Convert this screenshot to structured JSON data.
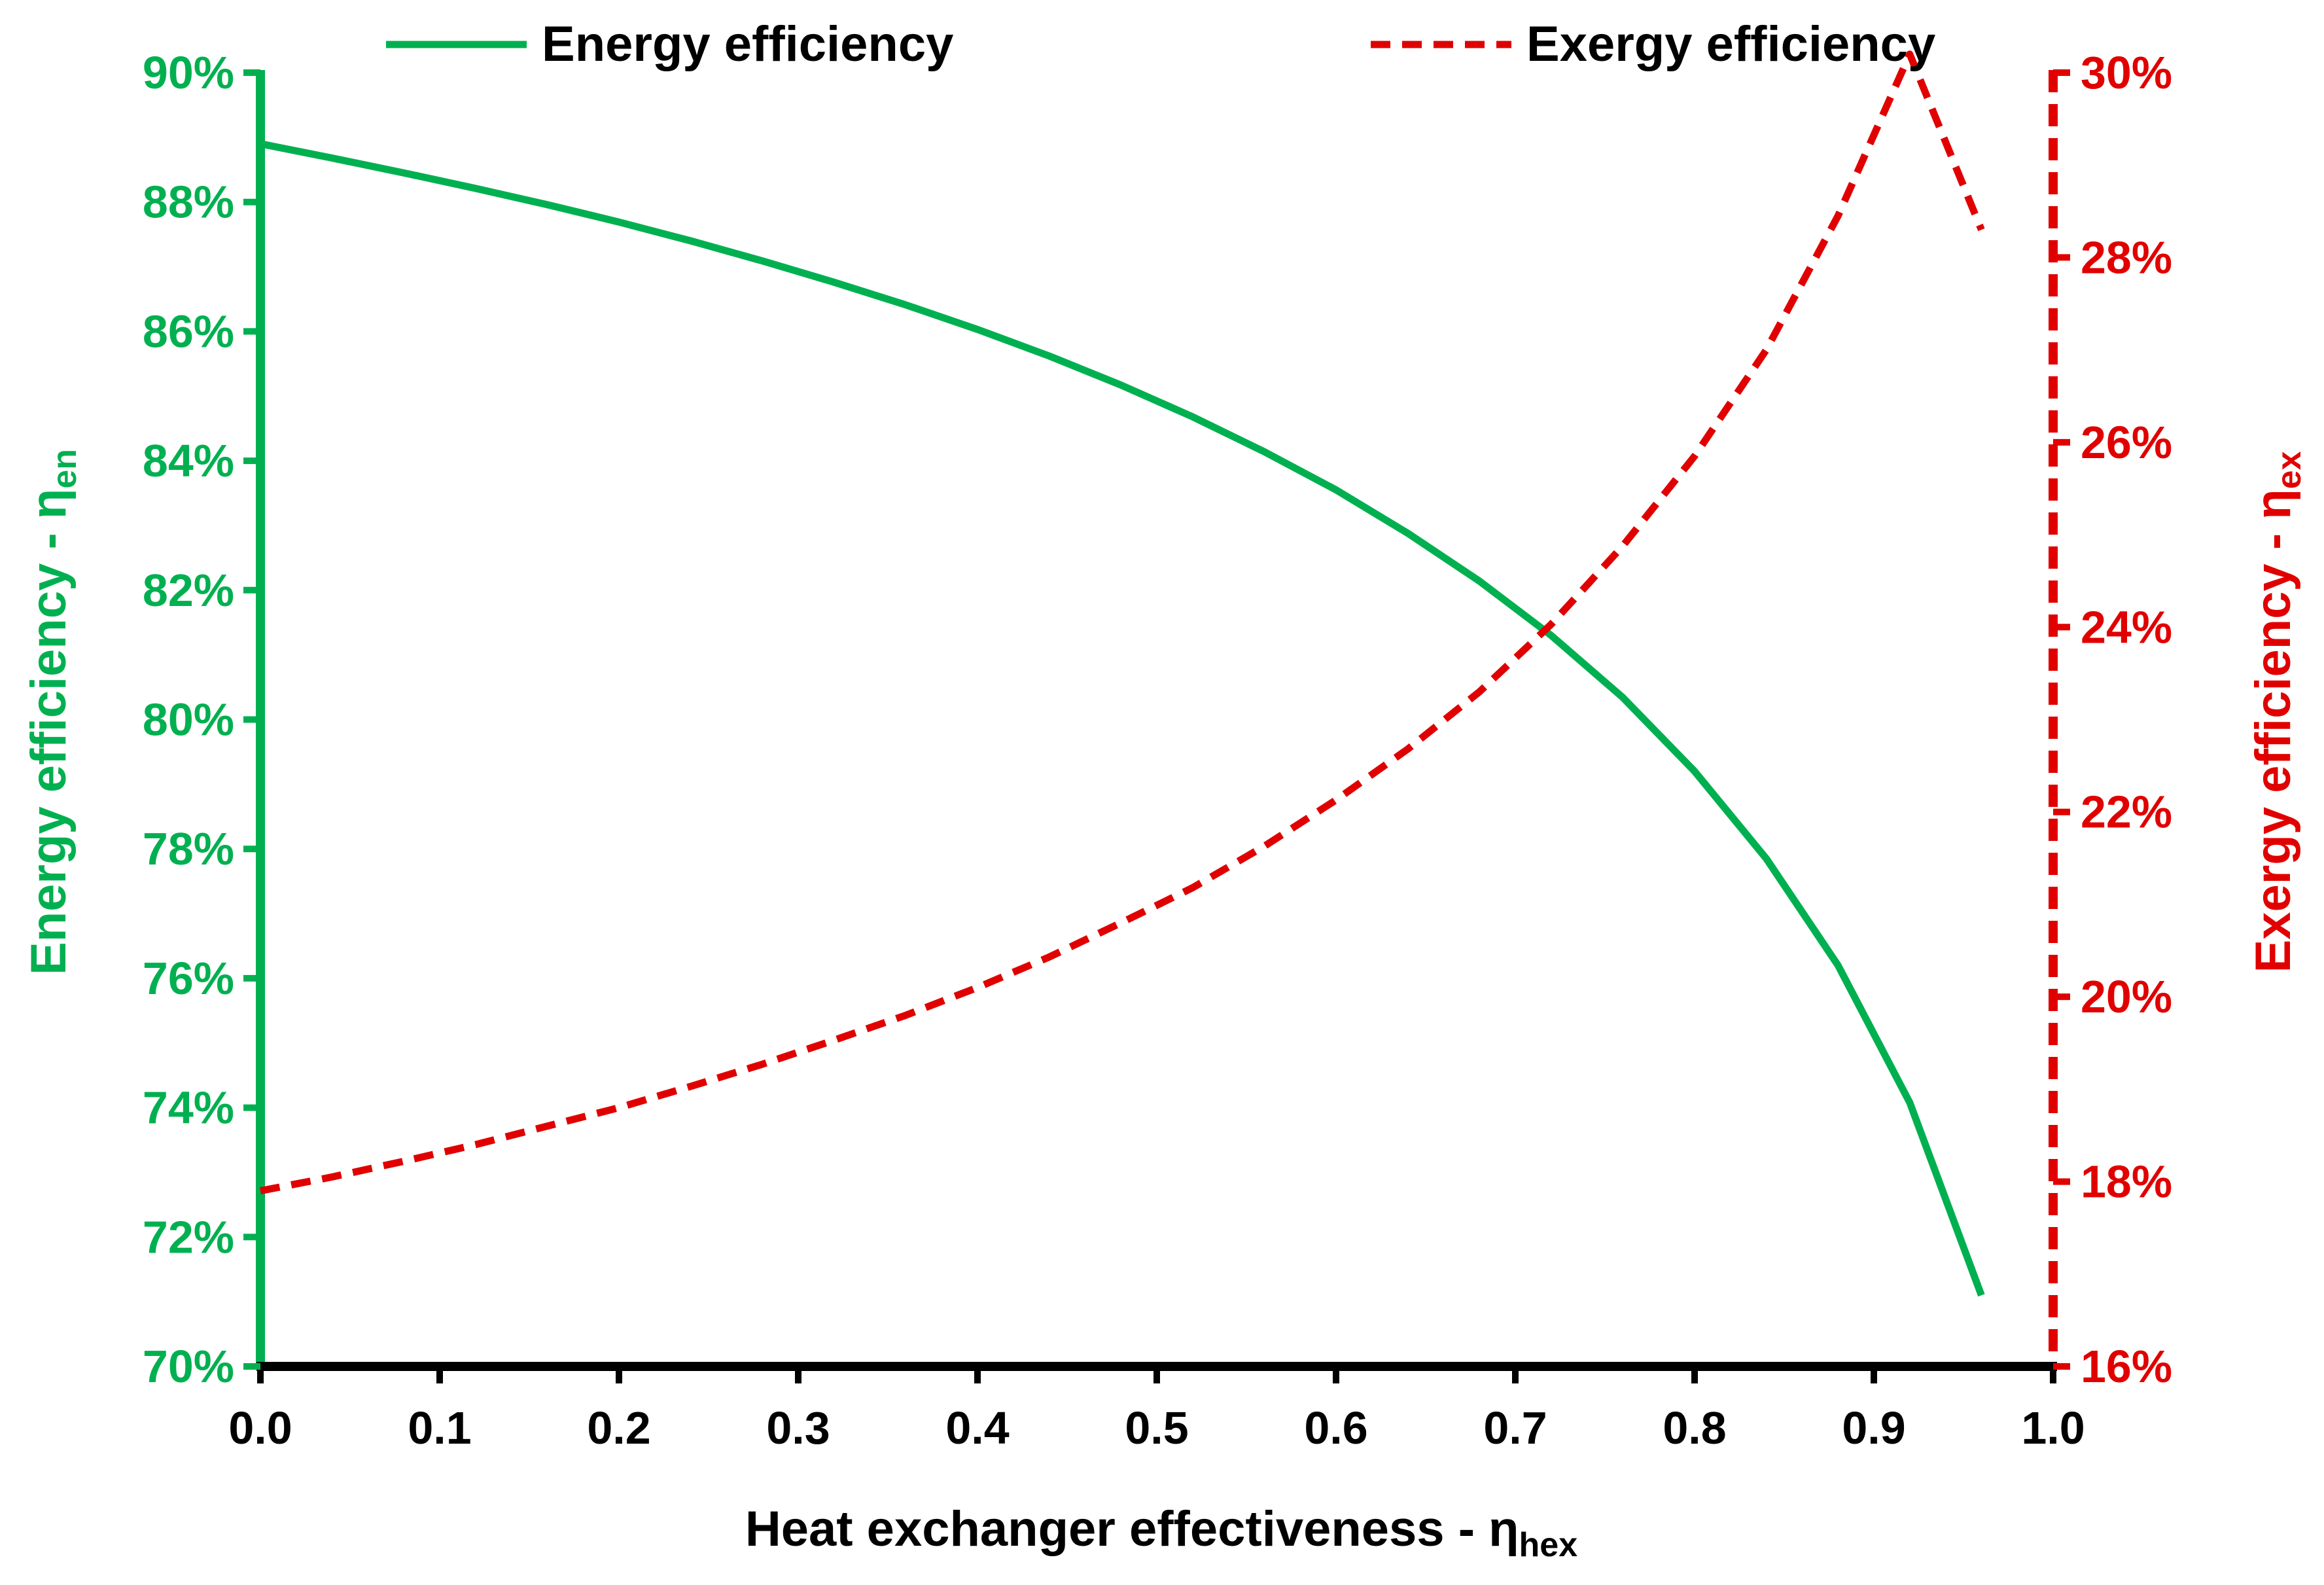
{
  "chart_data": {
    "type": "line",
    "title": "",
    "xlabel": "Heat exchanger effectiveness - η",
    "xlabel_sub": "hex",
    "ylabel_left": "Energy efficiency - η",
    "ylabel_left_sub": "en",
    "ylabel_right": "Exergy efficiency - η",
    "ylabel_right_sub": "ex",
    "xlim": [
      0,
      1
    ],
    "ylim_left": [
      0.7,
      0.9
    ],
    "ylim_right": [
      0.16,
      0.3
    ],
    "x_ticks": [
      "0.0",
      "0.1",
      "0.2",
      "0.3",
      "0.4",
      "0.5",
      "0.6",
      "0.7",
      "0.8",
      "0.9",
      "1.0"
    ],
    "y_left_ticks": [
      "70%",
      "72%",
      "74%",
      "76%",
      "78%",
      "80%",
      "82%",
      "84%",
      "86%",
      "88%",
      "90%"
    ],
    "y_right_ticks": [
      "16%",
      "18%",
      "20%",
      "22%",
      "24%",
      "26%",
      "28%",
      "30%"
    ],
    "legend_position": "top",
    "colors": {
      "energy": "#00b050",
      "exergy": "#e00000",
      "axis": "#000000"
    },
    "series": [
      {
        "name": "Energy efficiency",
        "axis": "left",
        "style": "solid",
        "x": [
          0.0,
          0.04,
          0.08,
          0.12,
          0.16,
          0.2,
          0.24,
          0.28,
          0.32,
          0.36,
          0.4,
          0.44,
          0.48,
          0.52,
          0.56,
          0.6,
          0.64,
          0.68,
          0.72,
          0.76,
          0.8,
          0.84,
          0.88,
          0.92,
          0.96
        ],
        "values": [
          0.889,
          0.8868,
          0.8845,
          0.8821,
          0.8796,
          0.8769,
          0.874,
          0.8709,
          0.8676,
          0.8641,
          0.8603,
          0.8562,
          0.8517,
          0.8468,
          0.8414,
          0.8355,
          0.8288,
          0.8214,
          0.813,
          0.8034,
          0.792,
          0.7785,
          0.762,
          0.7408,
          0.711
        ]
      },
      {
        "name": "Exergy efficiency",
        "axis": "right",
        "style": "dashed",
        "x": [
          0.0,
          0.04,
          0.08,
          0.12,
          0.16,
          0.2,
          0.24,
          0.28,
          0.32,
          0.36,
          0.4,
          0.44,
          0.48,
          0.52,
          0.56,
          0.6,
          0.64,
          0.68,
          0.72,
          0.76,
          0.8,
          0.84,
          0.88,
          0.92,
          0.96
        ],
        "values": [
          0.179,
          0.1805,
          0.1822,
          0.184,
          0.186,
          0.188,
          0.1903,
          0.1927,
          0.1953,
          0.198,
          0.201,
          0.2043,
          0.208,
          0.2118,
          0.2163,
          0.2213,
          0.2268,
          0.233,
          0.2403,
          0.2488,
          0.2585,
          0.27,
          0.2845,
          0.302,
          0.283
        ]
      }
    ]
  }
}
